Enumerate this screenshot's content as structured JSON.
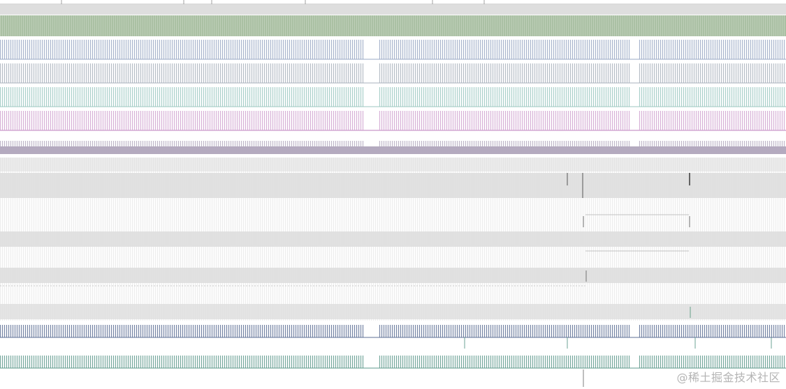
{
  "watermark": "@稀土掘金技术社区",
  "colors": {
    "ruler": "#8a8a8a",
    "green_band": "#a8bfa1",
    "blue_ticks": "#9aa8c4",
    "slate_ticks": "#a9b2bc",
    "teal_ticks": "#9bc7c0",
    "pink_ticks": "#d2a8d2",
    "purple_base": "#b4aabf",
    "gray_band": "#dcdcdc",
    "marker": "#7a7a7a",
    "navy_ticks": "#5c6f95",
    "green_ticks": "#5e9a8b"
  }
}
